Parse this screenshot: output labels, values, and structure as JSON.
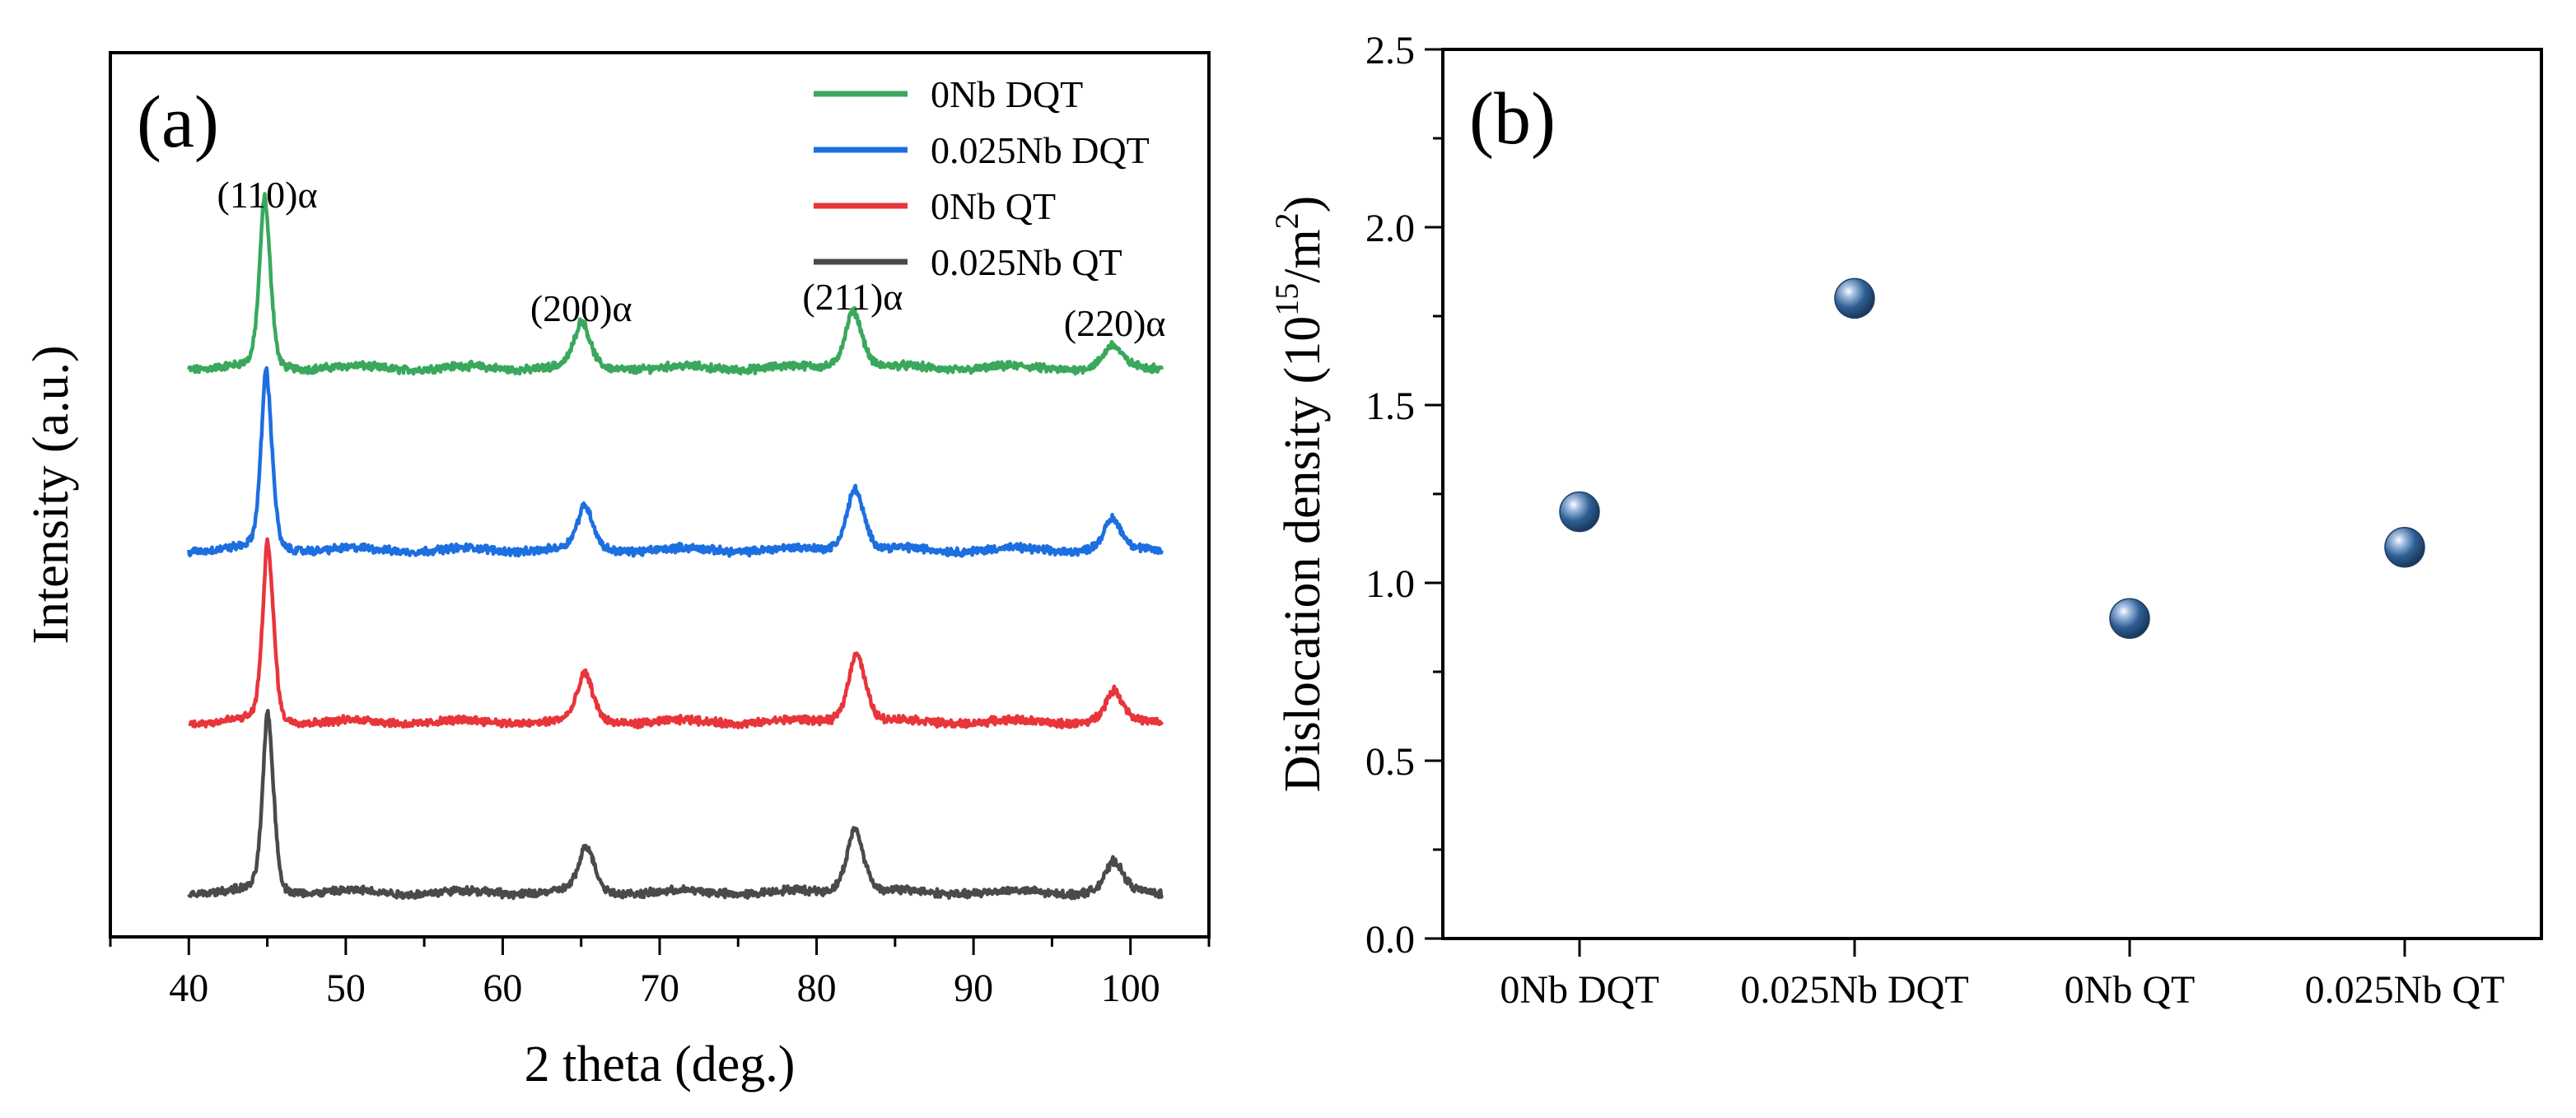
{
  "chart_data": [
    {
      "panel_label": "(a)",
      "type": "line",
      "xlabel": "2 theta (deg.)",
      "ylabel": "Intensity (a.u.)",
      "xlim": [
        35,
        105
      ],
      "x_ticks": [
        40,
        50,
        60,
        70,
        80,
        90,
        100
      ],
      "y_ticks": "none",
      "grid": false,
      "legend_position": "top-right",
      "x_range_measured": [
        40,
        102
      ],
      "series": [
        {
          "name": "0Nb DQT",
          "color": "#3aa85c",
          "offset": 3,
          "peaks": [
            {
              "x": 44.8,
              "height": 0.9,
              "width": 0.3
            },
            {
              "x": 65.0,
              "height": 0.23,
              "width": 0.45
            },
            {
              "x": 82.3,
              "height": 0.3,
              "width": 0.5
            },
            {
              "x": 98.8,
              "height": 0.11,
              "width": 0.5
            }
          ]
        },
        {
          "name": "0.025Nb DQT",
          "color": "#1c6fe0",
          "offset": 2,
          "peaks": [
            {
              "x": 44.9,
              "height": 0.95,
              "width": 0.3
            },
            {
              "x": 65.2,
              "height": 0.22,
              "width": 0.45
            },
            {
              "x": 82.4,
              "height": 0.32,
              "width": 0.5
            },
            {
              "x": 98.8,
              "height": 0.15,
              "width": 0.5
            }
          ]
        },
        {
          "name": "0Nb QT",
          "color": "#e8353a",
          "offset": 1,
          "peaks": [
            {
              "x": 45.0,
              "height": 0.95,
              "width": 0.3
            },
            {
              "x": 65.2,
              "height": 0.24,
              "width": 0.45
            },
            {
              "x": 82.5,
              "height": 0.36,
              "width": 0.5
            },
            {
              "x": 98.9,
              "height": 0.15,
              "width": 0.5
            }
          ]
        },
        {
          "name": "0.025Nb QT",
          "color": "#4a4a4a",
          "offset": 0,
          "peaks": [
            {
              "x": 45.0,
              "height": 0.95,
              "width": 0.3
            },
            {
              "x": 65.3,
              "height": 0.23,
              "width": 0.45
            },
            {
              "x": 82.4,
              "height": 0.33,
              "width": 0.5
            },
            {
              "x": 98.9,
              "height": 0.15,
              "width": 0.5
            }
          ]
        }
      ],
      "annotations": [
        {
          "text": "(110)α",
          "x": 45.0
        },
        {
          "text": "(200)α",
          "x": 65.0
        },
        {
          "text": "(211)α",
          "x": 82.3
        },
        {
          "text": "(220)α",
          "x": 99.0
        }
      ]
    },
    {
      "panel_label": "(b)",
      "type": "scatter",
      "ylabel_main": "Dislocation density (10",
      "ylabel_sup1": "15",
      "ylabel_mid": "/m",
      "ylabel_sup2": "2",
      "ylabel_end": ")",
      "categories": [
        "0Nb DQT",
        "0.025Nb DQT",
        "0Nb QT",
        "0.025Nb QT"
      ],
      "values": [
        1.2,
        1.8,
        0.9,
        1.1
      ],
      "ylim": [
        0.0,
        2.5
      ],
      "y_ticks": [
        "0.0",
        "0.5",
        "1.0",
        "1.5",
        "2.0",
        "2.5"
      ],
      "grid": false,
      "marker_color": "#2f5f96"
    }
  ]
}
